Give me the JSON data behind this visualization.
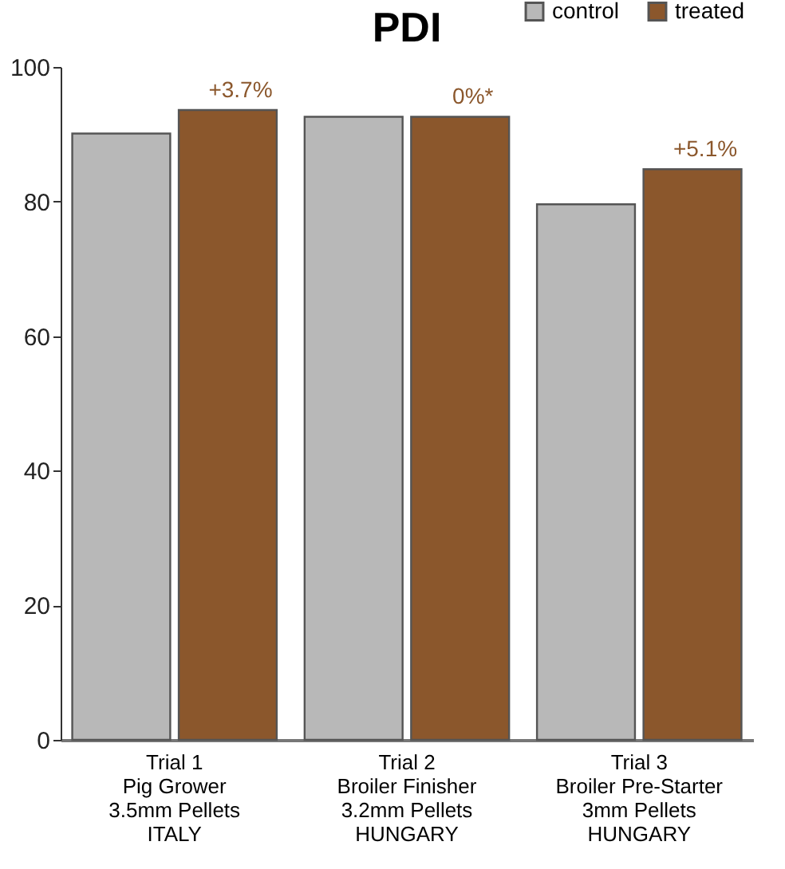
{
  "chart_data": {
    "type": "bar",
    "title": "PDI",
    "categories": [
      "Trial 1\nPig Grower\n3.5mm Pellets\nITALY",
      "Trial 2\nBroiler Finisher\n3.2mm Pellets\nHUNGARY",
      "Trial 3\nBroiler Pre-Starter\n3mm Pellets\nHUNGARY"
    ],
    "series": [
      {
        "name": "control",
        "color": "#b8b8b8",
        "values": [
          90.1,
          92.6,
          79.6
        ]
      },
      {
        "name": "treated",
        "color": "#8b572c",
        "values": [
          93.6,
          92.6,
          84.8
        ]
      }
    ],
    "annotations": [
      {
        "text": "+3.7%",
        "x": "Trial 1\nPig Grower\n3.5mm Pellets\nITALY",
        "y": 93.6
      },
      {
        "text": "0%*",
        "x": "Trial 2\nBroiler Finisher\n3.2mm Pellets\nHUNGARY",
        "y": 92.6
      },
      {
        "text": "+5.1%",
        "x": "Trial 3\nBroiler Pre-Starter\n3mm Pellets\nHUNGARY",
        "y": 84.8
      }
    ],
    "ylim": [
      0,
      100
    ],
    "yticks": [
      0,
      20,
      40,
      60,
      80,
      100
    ],
    "grid": false,
    "legend": "top right"
  }
}
